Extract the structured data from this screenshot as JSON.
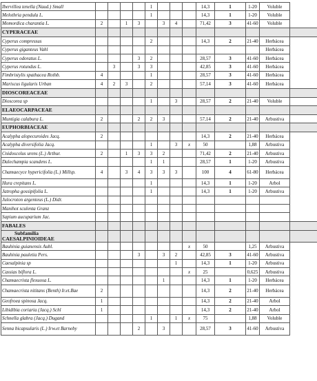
{
  "rows": [
    {
      "type": "sp",
      "name": "Ibervillea tenella (Naud.) Small",
      "c": [
        "",
        "",
        "",
        "",
        "1",
        "",
        "",
        ""
      ],
      "f": "14,3",
      "cl": "1",
      "r": "1-20",
      "hab": "Voluble"
    },
    {
      "type": "sp",
      "name": "Melothria pendula L.",
      "c": [
        "",
        "",
        "",
        "",
        "1",
        "",
        "",
        ""
      ],
      "f": "14,3",
      "cl": "1",
      "r": "1-20",
      "hab": "Voluble"
    },
    {
      "type": "sp",
      "name": "Momordica charantia L.",
      "c": [
        "2",
        "",
        "1",
        "3",
        "",
        "3",
        "4",
        ""
      ],
      "f": "71,42",
      "cl": "3",
      "r": "41-60",
      "hab": "Voluble"
    },
    {
      "type": "fam",
      "name": "CYPERACEAE"
    },
    {
      "type": "sp",
      "name": "Cyperus compressus",
      "c": [
        "",
        "",
        "",
        "",
        "2",
        "",
        "",
        ""
      ],
      "f": "14,3",
      "cl": "2",
      "r": "21-40",
      "hab": "Herbácea"
    },
    {
      "type": "sp",
      "name": "Cyperus giganteus Vahl",
      "c": [
        "",
        "",
        "",
        "",
        "",
        "",
        "",
        ""
      ],
      "f": "",
      "cl": "",
      "r": "",
      "hab": "Herbácea"
    },
    {
      "type": "sp",
      "name": "Cyperus odoratus L.",
      "c": [
        "",
        "",
        "",
        "3",
        "2",
        "",
        "",
        ""
      ],
      "f": "28,57",
      "cl": "3",
      "r": "41-60",
      "hab": "Herbácea"
    },
    {
      "type": "sp",
      "name": "Cyperus rotundus L.",
      "c": [
        "",
        "3",
        "",
        "3",
        "3",
        "",
        "",
        ""
      ],
      "f": "42,85",
      "cl": "3",
      "r": "41-60",
      "hab": "Herbácea"
    },
    {
      "type": "sp",
      "name": "Fimbristylis spathacea Rothb.",
      "c": [
        "4",
        "",
        "",
        "",
        "1",
        "",
        "",
        ""
      ],
      "f": "28,57",
      "cl": "3",
      "r": "41-60",
      "hab": "Herbácea"
    },
    {
      "type": "sp",
      "name": "Mariscus ligularis Urban",
      "c": [
        "4",
        "2",
        "3",
        "",
        "2",
        "",
        "",
        ""
      ],
      "f": "57,14",
      "cl": "3",
      "r": "41-60",
      "hab": "Herbácea"
    },
    {
      "type": "fam",
      "name": "DIOSCOREACEAE"
    },
    {
      "type": "sp",
      "name": "Dioscorea sp",
      "c": [
        "",
        "",
        "",
        "",
        "1",
        "",
        "3",
        ""
      ],
      "f": "28,57",
      "cl": "2",
      "r": "21-40",
      "hab": "Voluble"
    },
    {
      "type": "fam",
      "name": "ELAEOCARPACEAE"
    },
    {
      "type": "sp",
      "name": "Muntigia calabura L.",
      "c": [
        "2",
        "",
        "",
        "2",
        "2",
        "3",
        "",
        ""
      ],
      "f": "57,14",
      "cl": "2",
      "r": "21-40",
      "hab": "Arbustiva"
    },
    {
      "type": "fam",
      "name": "EUPHORBIACEAE"
    },
    {
      "type": "sp",
      "name": "Acalypha alopecuroides Jacq.",
      "c": [
        "2",
        "",
        "",
        "",
        "",
        "",
        "",
        ""
      ],
      "f": "14,3",
      "cl": "2",
      "r": "21-40",
      "hab": "Herbácea"
    },
    {
      "type": "sp",
      "name": "Acalypha diversifolia Jacq.",
      "c": [
        "",
        "",
        "",
        "",
        "1",
        "",
        "3",
        "x"
      ],
      "f": "50",
      "cl": "",
      "r": "1,88",
      "hab": "Arbustiva"
    },
    {
      "type": "sp",
      "name": "Cnidoscolus urens (L.) Arthur.",
      "c": [
        "2",
        "",
        "1",
        "3",
        "3",
        "2",
        "",
        ""
      ],
      "f": "71,42",
      "cl": "2",
      "r": "21-40",
      "hab": "Arbustiva"
    },
    {
      "type": "sp",
      "name": "Dalechampia scandens L.",
      "c": [
        "",
        "",
        "",
        "",
        "1",
        "1",
        "",
        ""
      ],
      "f": "28,57",
      "cl": "1",
      "r": "1-20",
      "hab": "Arbustiva"
    },
    {
      "type": "sp",
      "name": "Chamaecyce hypericifolia (L.) Millsp.",
      "c": [
        "4",
        "",
        "3",
        "4",
        "3",
        "3",
        "3",
        ""
      ],
      "f": "100",
      "cl": "4",
      "r": "61-80",
      "hab": "Herbácea"
    },
    {
      "type": "sp",
      "name": "Hura crepitans L.",
      "c": [
        "",
        "",
        "",
        "",
        "1",
        "",
        "",
        ""
      ],
      "f": "14,3",
      "cl": "1",
      "r": "1-20",
      "hab": "Arbol"
    },
    {
      "type": "sp",
      "name": "Jatropha gossipifolia L.",
      "c": [
        "",
        "",
        "",
        "",
        "1",
        "",
        "",
        ""
      ],
      "f": "14,3",
      "cl": "1",
      "r": "1-20",
      "hab": "Arbustiva"
    },
    {
      "type": "sp",
      "name": "Julocroton argenteus (L.) Didr.",
      "c": [
        "",
        "",
        "",
        "",
        "",
        "",
        "",
        ""
      ],
      "f": "",
      "cl": "",
      "r": "",
      "hab": ""
    },
    {
      "type": "sp",
      "name": "Manihot sculenta Granz",
      "c": [
        "",
        "",
        "",
        "",
        "",
        "",
        "",
        ""
      ],
      "f": "",
      "cl": "",
      "r": "",
      "hab": ""
    },
    {
      "type": "sp",
      "name": "Sapium aucuparium Jac.",
      "c": [
        "",
        "",
        "",
        "",
        "",
        "",
        "",
        ""
      ],
      "f": "",
      "cl": "",
      "r": "",
      "hab": ""
    },
    {
      "type": "fam",
      "name": "FABALES"
    },
    {
      "type": "sub",
      "name": "Subfamilia",
      "name2": "CAESALPINIOIDEAE"
    },
    {
      "type": "sp",
      "name": "Bauhinia guianensis Aubl.",
      "c": [
        "",
        "",
        "",
        "",
        "",
        "",
        "",
        "x"
      ],
      "f": "50",
      "cl": "",
      "r": "1,25",
      "hab": "Arbustiva"
    },
    {
      "type": "sp",
      "name": "Bauhinia pauletia Pers.",
      "c": [
        "",
        "",
        "",
        "3",
        "",
        "3",
        "2",
        ""
      ],
      "f": "42,85",
      "cl": "3",
      "r": "41-60",
      "hab": "Arbustiva"
    },
    {
      "type": "sp",
      "name": "Caesalpinia sp",
      "c": [
        "",
        "",
        "",
        "",
        "",
        "",
        "1",
        ""
      ],
      "f": "14,3",
      "cl": "1",
      "r": "1-20",
      "hab": "Arbustiva"
    },
    {
      "type": "sp",
      "name": "Cassias biflora L.",
      "c": [
        "",
        "",
        "",
        "",
        "",
        "",
        "",
        "x"
      ],
      "f": "25",
      "cl": "",
      "r": "0,625",
      "hab": "Arbustiva"
    },
    {
      "type": "sp",
      "name": "Chamaecrista flexuosa L.",
      "c": [
        "",
        "",
        "",
        "",
        "",
        "1",
        "",
        ""
      ],
      "f": "14,3",
      "cl": "1",
      "r": "1-20",
      "hab": "Herbácea"
    },
    {
      "type": "sp",
      "name": "Chamaecrista nititans (Benth) Ir.et.Bae",
      "c": [
        "2",
        "",
        "",
        "",
        "",
        "",
        "",
        ""
      ],
      "f": "14,3",
      "cl": "2",
      "r": "21-40",
      "hab": "Herbácea"
    },
    {
      "type": "sp",
      "name": "Geofroea spinosa Jacq.",
      "c": [
        "1",
        "",
        "",
        "",
        "",
        "",
        "",
        ""
      ],
      "f": "14,3",
      "cl": "2",
      "r": "21-40",
      "hab": "Arbol"
    },
    {
      "type": "sp",
      "name": "Libidibia coriaria (Jacq.) Schl",
      "c": [
        "1",
        "",
        "",
        "",
        "",
        "",
        "",
        ""
      ],
      "f": "14,3",
      "cl": "2",
      "r": "21-40",
      "hab": "Arbol"
    },
    {
      "type": "sp",
      "name": "Schnella glabra (Jacq.) Dugand",
      "c": [
        "",
        "",
        "",
        "",
        "1",
        "",
        "1",
        "x"
      ],
      "f": "75",
      "cl": "",
      "r": "1,88",
      "hab": "Voluble"
    },
    {
      "type": "sp",
      "name": "Senna bicapsularis (L.) Irw.et Barneby",
      "c": [
        "",
        "",
        "",
        "2",
        "",
        "3",
        "",
        ""
      ],
      "f": "28,57",
      "cl": "3",
      "r": "41-60",
      "hab": "Arbustiva"
    }
  ]
}
